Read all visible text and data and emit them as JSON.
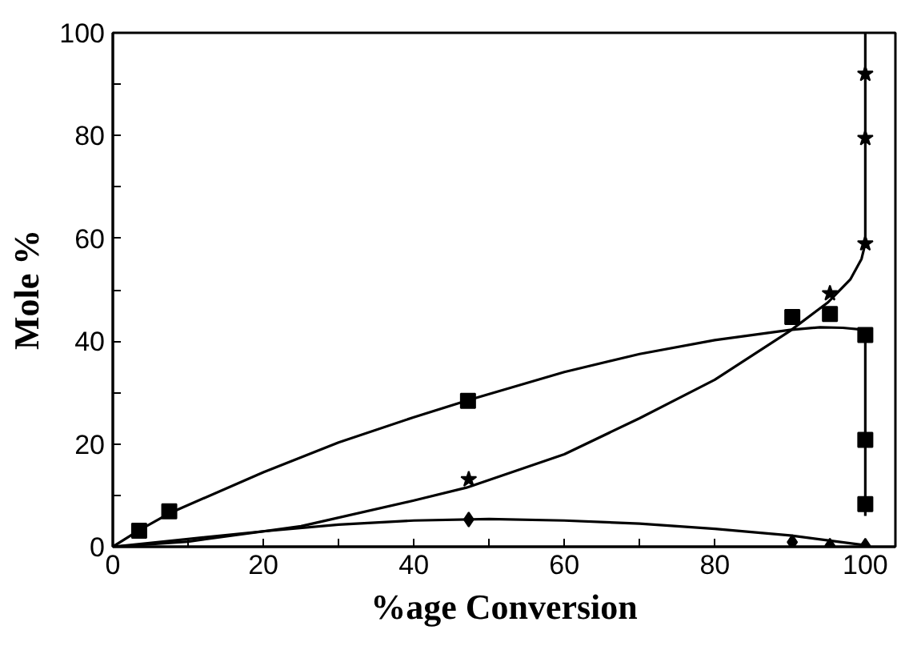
{
  "chart_data": {
    "type": "scatter",
    "xlabel": "%age Conversion",
    "ylabel": "Mole %",
    "xlim": [
      0,
      104
    ],
    "ylim": [
      0,
      100
    ],
    "xticks": [
      0,
      {
        "value": 10,
        "label": null
      },
      20,
      {
        "value": 30,
        "label": null
      },
      40,
      {
        "value": 50,
        "label": null
      },
      60,
      {
        "value": 70,
        "label": null
      },
      80,
      {
        "value": 90,
        "label": null
      },
      100
    ],
    "yticks": [
      0,
      {
        "value": 10,
        "label": null
      },
      20,
      {
        "value": 30,
        "label": null
      },
      40,
      {
        "value": 50,
        "label": null
      },
      60,
      {
        "value": 70,
        "label": null
      },
      80,
      {
        "value": 90,
        "label": null
      },
      100
    ],
    "grid": false,
    "series": [
      {
        "marker": "square",
        "color": "#000000",
        "x": [
          3.5,
          7.5,
          47.2,
          90.3,
          95.3,
          100,
          100,
          100
        ],
        "values": [
          3.1,
          6.9,
          28.4,
          44.7,
          45.3,
          41.2,
          20.8,
          8.3
        ]
      },
      {
        "marker": "star",
        "color": "#000000",
        "x": [
          47.3,
          95.3,
          100,
          100,
          100
        ],
        "values": [
          13.1,
          49.3,
          59.0,
          79.5,
          92.0
        ]
      },
      {
        "marker": "diamond",
        "color": "#000000",
        "x": [
          47.3,
          90.3,
          95.3,
          100
        ],
        "values": [
          5.3,
          0.9,
          0.2,
          0.2
        ]
      },
      {
        "type": "line",
        "marker": "none",
        "line_style": "solid",
        "color": "#000000",
        "x": [
          0,
          3.5,
          7.5,
          20,
          30,
          40,
          47.2,
          60,
          70,
          80,
          90,
          94,
          97,
          100,
          100
        ],
        "values": [
          0,
          3.2,
          6.5,
          14.5,
          20.3,
          25.2,
          28.5,
          34,
          37.5,
          40.2,
          42.2,
          42.7,
          42.6,
          42.2,
          6
        ]
      },
      {
        "type": "line",
        "marker": "none",
        "line_style": "solid",
        "color": "#000000",
        "x": [
          0,
          10,
          25,
          40,
          47,
          60,
          70,
          80,
          90,
          95,
          98,
          99.5,
          100,
          100
        ],
        "values": [
          0,
          1,
          4,
          9,
          11.5,
          18,
          25,
          32.5,
          42,
          47.5,
          52,
          56,
          59,
          100
        ]
      },
      {
        "type": "line",
        "marker": "none",
        "line_style": "solid",
        "color": "#000000",
        "x": [
          0,
          10,
          20,
          30,
          40,
          50,
          60,
          70,
          80,
          90,
          100
        ],
        "values": [
          0,
          1.5,
          3,
          4.3,
          5.1,
          5.4,
          5.1,
          4.5,
          3.5,
          2.2,
          0.3
        ]
      }
    ]
  }
}
